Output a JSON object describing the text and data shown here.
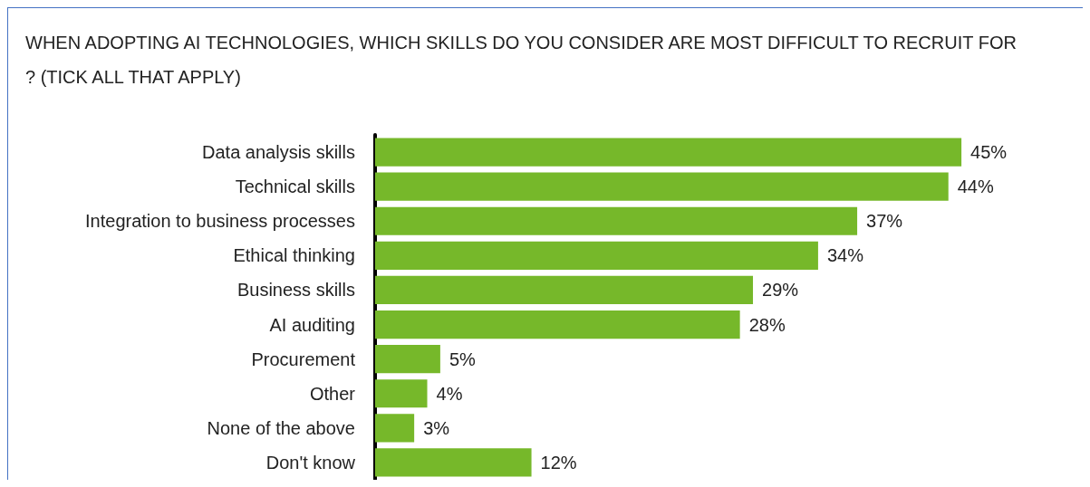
{
  "chart_data": {
    "type": "bar",
    "orientation": "horizontal",
    "title": "WHEN ADOPTING AI TECHNOLOGIES, WHICH SKILLS DO YOU CONSIDER ARE MOST DIFFICULT TO RECRUIT FOR? (TICK ALL THAT APPLY)",
    "categories": [
      "Data analysis skills",
      "Technical skills",
      "Integration to business processes",
      "Ethical thinking",
      "Business skills",
      "AI auditing",
      "Procurement",
      "Other",
      "None of the above",
      "Don't know"
    ],
    "values": [
      45,
      44,
      37,
      34,
      29,
      28,
      5,
      4,
      3,
      12
    ],
    "value_labels": [
      "45%",
      "44%",
      "37%",
      "34%",
      "29%",
      "28%",
      "5%",
      "4%",
      "3%",
      "12%"
    ],
    "color": "#76b82a",
    "grid": false
  }
}
